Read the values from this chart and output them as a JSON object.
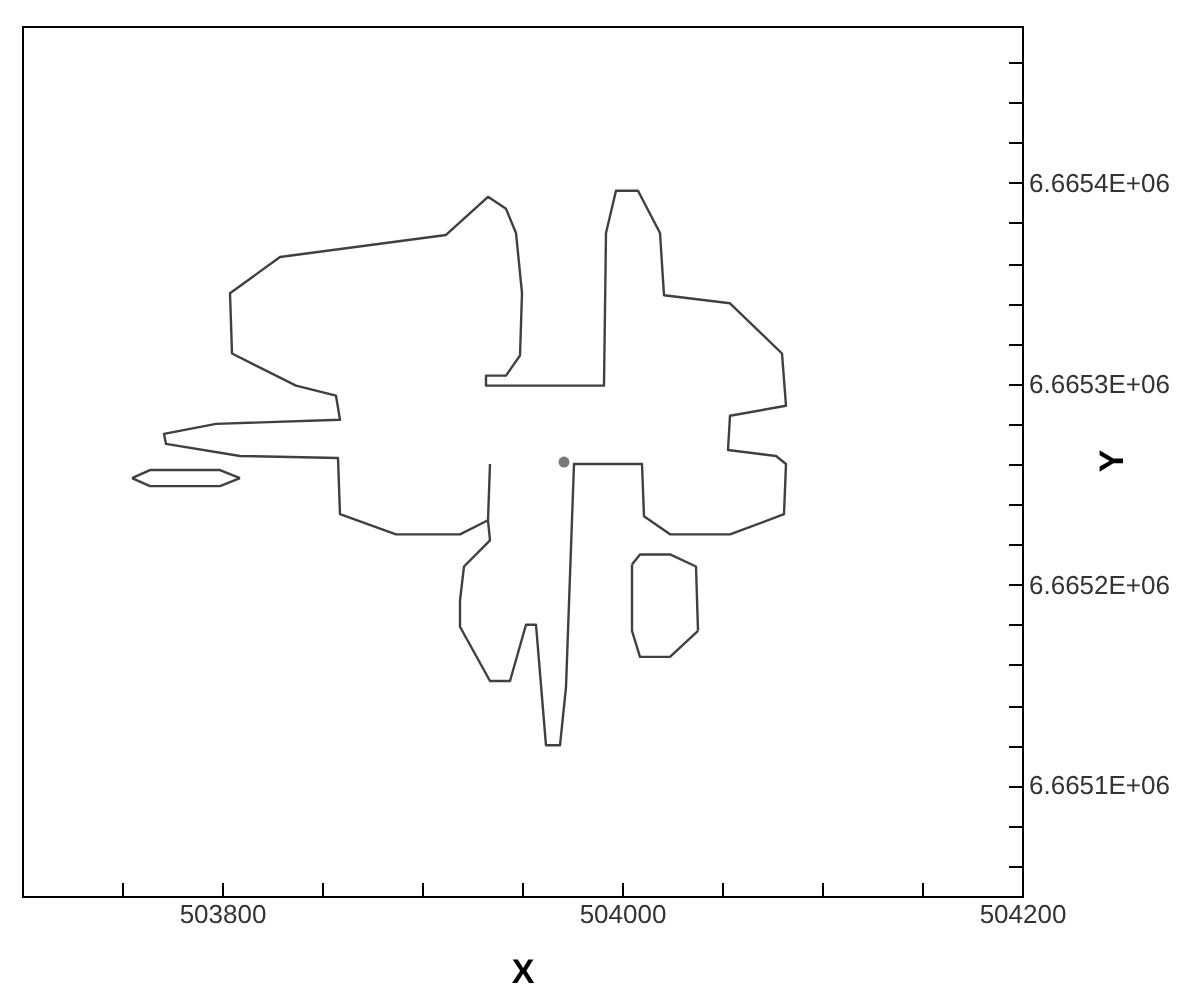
{
  "chart_data": {
    "type": "line",
    "xlabel": "X",
    "ylabel": "Y",
    "xlim": [
      503700,
      504200
    ],
    "ylim": [
      6665045,
      6665478
    ],
    "xticks": [
      {
        "value": 503750,
        "label": null
      },
      503800,
      {
        "value": 503850,
        "label": null
      },
      {
        "value": 503900,
        "label": null
      },
      {
        "value": 503950,
        "label": null
      },
      504000,
      {
        "value": 504050,
        "label": null
      },
      {
        "value": 504100,
        "label": null
      },
      {
        "value": 504150,
        "label": null
      },
      504200
    ],
    "yticks": [
      {
        "value": 6665060,
        "label": null
      },
      {
        "value": 6665080,
        "label": null
      },
      {
        "value": 6665100,
        "label": "6.6651E+06"
      },
      {
        "value": 6665120,
        "label": null
      },
      {
        "value": 6665140,
        "label": null
      },
      {
        "value": 6665160,
        "label": null
      },
      {
        "value": 6665180,
        "label": null
      },
      {
        "value": 6665200,
        "label": "6.6652E+06"
      },
      {
        "value": 6665220,
        "label": null
      },
      {
        "value": 6665240,
        "label": null
      },
      {
        "value": 6665260,
        "label": null
      },
      {
        "value": 6665280,
        "label": null
      },
      {
        "value": 6665300,
        "label": "6.6653E+06"
      },
      {
        "value": 6665320,
        "label": null
      },
      {
        "value": 6665340,
        "label": null
      },
      {
        "value": 6665360,
        "label": null
      },
      {
        "value": 6665380,
        "label": null
      },
      {
        "value": 6665400,
        "label": "6.6654E+06"
      },
      {
        "value": 6665420,
        "label": null
      },
      {
        "value": 6665440,
        "label": null
      },
      {
        "value": 6665460,
        "label": null
      }
    ],
    "line_style": "solid",
    "series": [
      {
        "color": "#404040",
        "x": [
          503934,
          503933,
          503934,
          503921,
          503919,
          503919,
          503934,
          503944,
          503952,
          503957,
          503962,
          503969,
          503972,
          503976,
          504010,
          504011,
          504024,
          504054,
          504081,
          504082,
          504077,
          504053,
          504054,
          504082,
          504080,
          504054,
          504021,
          504019,
          504008,
          503997,
          503992,
          503991,
          503932,
          503932,
          503942,
          503949,
          503950,
          503947,
          503942,
          503933,
          503912,
          503829,
          503804,
          503805,
          503837,
          503857,
          503859,
          503797,
          503771,
          503772,
          503809,
          503858,
          503859,
          503887,
          503919,
          503933
        ],
        "values": [
          6665260,
          6665232,
          6665222,
          6665209,
          6665192,
          6665179,
          6665152,
          6665152,
          6665180,
          6665180,
          6665120,
          6665120,
          6665149,
          6665260,
          6665260,
          6665234,
          6665225,
          6665225,
          6665235,
          6665260,
          6665264,
          6665267,
          6665284,
          6665289,
          6665315,
          6665340,
          6665344,
          6665375,
          6665396,
          6665396,
          6665375,
          6665299,
          6665299,
          6665304,
          6665304,
          6665314,
          6665345,
          6665375,
          6665387,
          6665393,
          6665374,
          6665363,
          6665345,
          6665315,
          6665299,
          6665294,
          6665282,
          6665280,
          6665275,
          6665270,
          6665264,
          6665263,
          6665235,
          6665225,
          6665225,
          6665232
        ]
      },
      {
        "color": "#404040",
        "x": [
          503755,
          503764,
          503799,
          503809
        ],
        "values": [
          6665253,
          6665257,
          6665257,
          6665253
        ]
      },
      {
        "color": "#404040",
        "x": [
          503755,
          503764,
          503799,
          503809
        ],
        "values": [
          6665253,
          6665249,
          6665249,
          6665253
        ]
      },
      {
        "color": "#404040",
        "x": [
          504005,
          504009,
          504024,
          504037,
          504038
        ],
        "values": [
          6665210,
          6665215,
          6665215,
          6665209,
          6665177
        ]
      },
      {
        "color": "#404040",
        "x": [
          504005,
          504005,
          504009,
          504024,
          504038
        ],
        "values": [
          6665210,
          6665177,
          6665164,
          6665164,
          6665177
        ]
      },
      {
        "type": "scatter",
        "color": "#404040",
        "x": [
          503971
        ],
        "values": [
          6665261
        ]
      }
    ]
  }
}
